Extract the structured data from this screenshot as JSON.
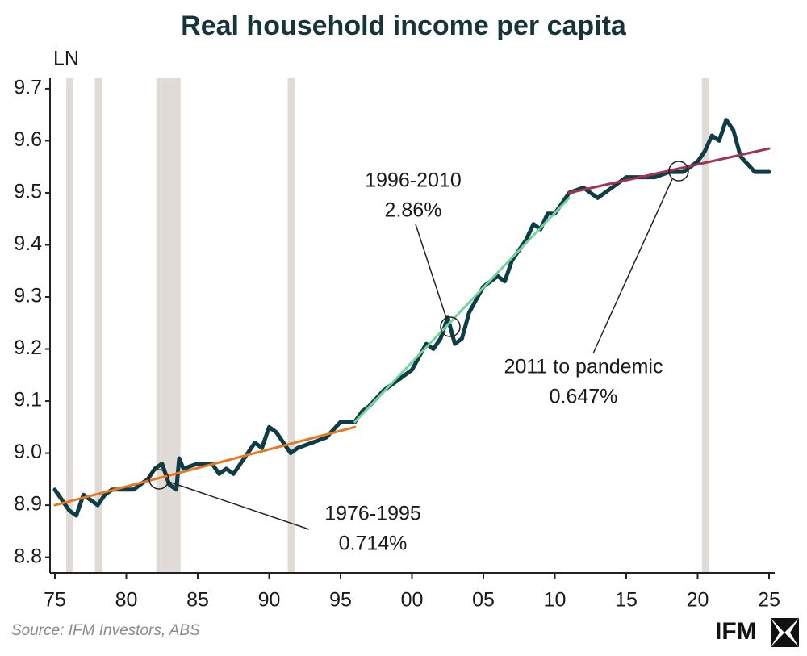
{
  "chart_data": {
    "type": "line",
    "title": "Real household income per capita",
    "y_label": "LN",
    "xlim": [
      1975,
      2025
    ],
    "xticks": [
      {
        "value": 1975,
        "label": "75"
      },
      {
        "value": 1980,
        "label": "80"
      },
      {
        "value": 1985,
        "label": "85"
      },
      {
        "value": 1990,
        "label": "90"
      },
      {
        "value": 1995,
        "label": "95"
      },
      {
        "value": 2000,
        "label": "00"
      },
      {
        "value": 2005,
        "label": "05"
      },
      {
        "value": 2010,
        "label": "10"
      },
      {
        "value": 2015,
        "label": "15"
      },
      {
        "value": 2020,
        "label": "20"
      },
      {
        "value": 2025,
        "label": "25"
      }
    ],
    "ylim": [
      8.77,
      9.72
    ],
    "yticks": [
      8.8,
      8.9,
      {
        "value": 9,
        "label": "9.0"
      },
      9.1,
      9.2,
      9.3,
      9.4,
      9.5,
      9.6,
      9.7
    ],
    "shade_color": "#e0dbd7",
    "shaded_periods": [
      [
        1975.8,
        1976.3
      ],
      [
        1977.8,
        1978.3
      ],
      [
        1982.1,
        1983.8
      ],
      [
        1991.3,
        1991.8
      ],
      [
        2020.3,
        2020.8
      ]
    ],
    "series": [
      {
        "color": "#0e3d45",
        "x": [
          1975.0,
          1975.5,
          1976.0,
          1976.5,
          1977.0,
          1977.5,
          1978.0,
          1978.5,
          1979.0,
          1979.5,
          1980.0,
          1980.5,
          1981.0,
          1981.5,
          1982.0,
          1982.5,
          1983.0,
          1983.5,
          1983.7,
          1984.0,
          1985.0,
          1986.0,
          1986.5,
          1987.0,
          1987.5,
          1988.0,
          1989.0,
          1989.5,
          1990.0,
          1990.5,
          1991.0,
          1991.5,
          1992.0,
          1993.0,
          1994.0,
          1995.0,
          1996.0,
          1996.5,
          1997.0,
          1998.0,
          1999.0,
          2000.0,
          2001.0,
          2001.5,
          2002.0,
          2002.5,
          2003.0,
          2003.5,
          2004.0,
          2005.0,
          2006.0,
          2006.5,
          2007.0,
          2008.0,
          2008.5,
          2009.0,
          2009.5,
          2010.0,
          2010.5,
          2011.0,
          2012.0,
          2013.0,
          2014.0,
          2015.0,
          2016.0,
          2017.0,
          2018.0,
          2019.0,
          2020.0,
          2020.5,
          2021.0,
          2021.5,
          2022.0,
          2022.5,
          2023.0,
          2024.0,
          2025.0
        ],
        "values": [
          8.93,
          8.91,
          8.89,
          8.88,
          8.92,
          8.91,
          8.9,
          8.92,
          8.93,
          8.93,
          8.93,
          8.93,
          8.94,
          8.95,
          8.97,
          8.98,
          8.94,
          8.93,
          8.99,
          8.97,
          8.98,
          8.98,
          8.96,
          8.97,
          8.96,
          8.98,
          9.02,
          9.01,
          9.05,
          9.04,
          9.02,
          9.0,
          9.01,
          9.02,
          9.03,
          9.06,
          9.06,
          9.08,
          9.09,
          9.12,
          9.14,
          9.16,
          9.21,
          9.2,
          9.22,
          9.26,
          9.21,
          9.22,
          9.27,
          9.32,
          9.34,
          9.33,
          9.37,
          9.41,
          9.44,
          9.43,
          9.46,
          9.46,
          9.48,
          9.5,
          9.51,
          9.49,
          9.51,
          9.53,
          9.53,
          9.53,
          9.54,
          9.54,
          9.56,
          9.58,
          9.61,
          9.6,
          9.64,
          9.62,
          9.57,
          9.54,
          9.54
        ]
      },
      {
        "color": "#e87722",
        "x": [
          1975,
          1996
        ],
        "values": [
          8.9,
          9.05
        ]
      },
      {
        "color": "#72d39c",
        "x": [
          1996,
          2011
        ],
        "values": [
          9.06,
          9.49
        ]
      },
      {
        "color": "#a3344f",
        "x": [
          2011,
          2025
        ],
        "values": [
          9.5,
          9.585
        ]
      }
    ],
    "annotations": [
      {
        "lines": [
          "1976-1995",
          "0.714%"
        ]
      },
      {
        "lines": [
          "1996-2010",
          "2.86%"
        ]
      },
      {
        "lines": [
          "2011 to pandemic",
          "0.647%"
        ]
      }
    ]
  },
  "source": "Source: IFM Investors, ABS",
  "logo": "IFM"
}
